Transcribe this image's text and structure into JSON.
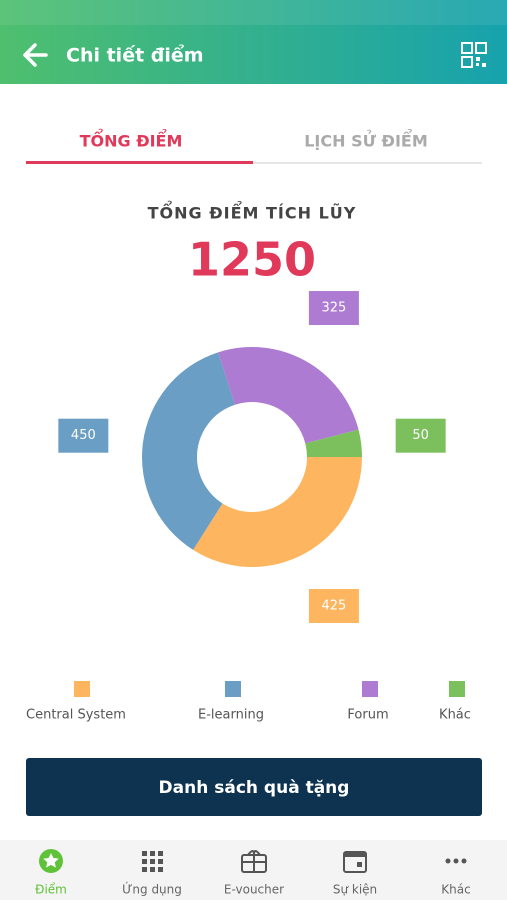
{
  "header": {
    "title": "Chi tiết điểm"
  },
  "tabs": [
    "TỔNG ĐIỂM",
    "LỊCH SỬ ĐIỂM"
  ],
  "summary": {
    "label": "TỔNG ĐIỂM TÍCH LŨY",
    "total": 1250
  },
  "chart_data": {
    "type": "donut",
    "categories": [
      "Central System",
      "E-learning",
      "Forum",
      "Khác"
    ],
    "values": [
      425,
      450,
      325,
      50
    ],
    "colors": [
      "#fdb65f",
      "#6a9ec5",
      "#ad7bd1",
      "#7cc05e"
    ]
  },
  "button": "Danh sách quà tặng",
  "nav": [
    "Điểm",
    "Ứng dụng",
    "E-voucher",
    "Sự kiện",
    "Khác"
  ]
}
